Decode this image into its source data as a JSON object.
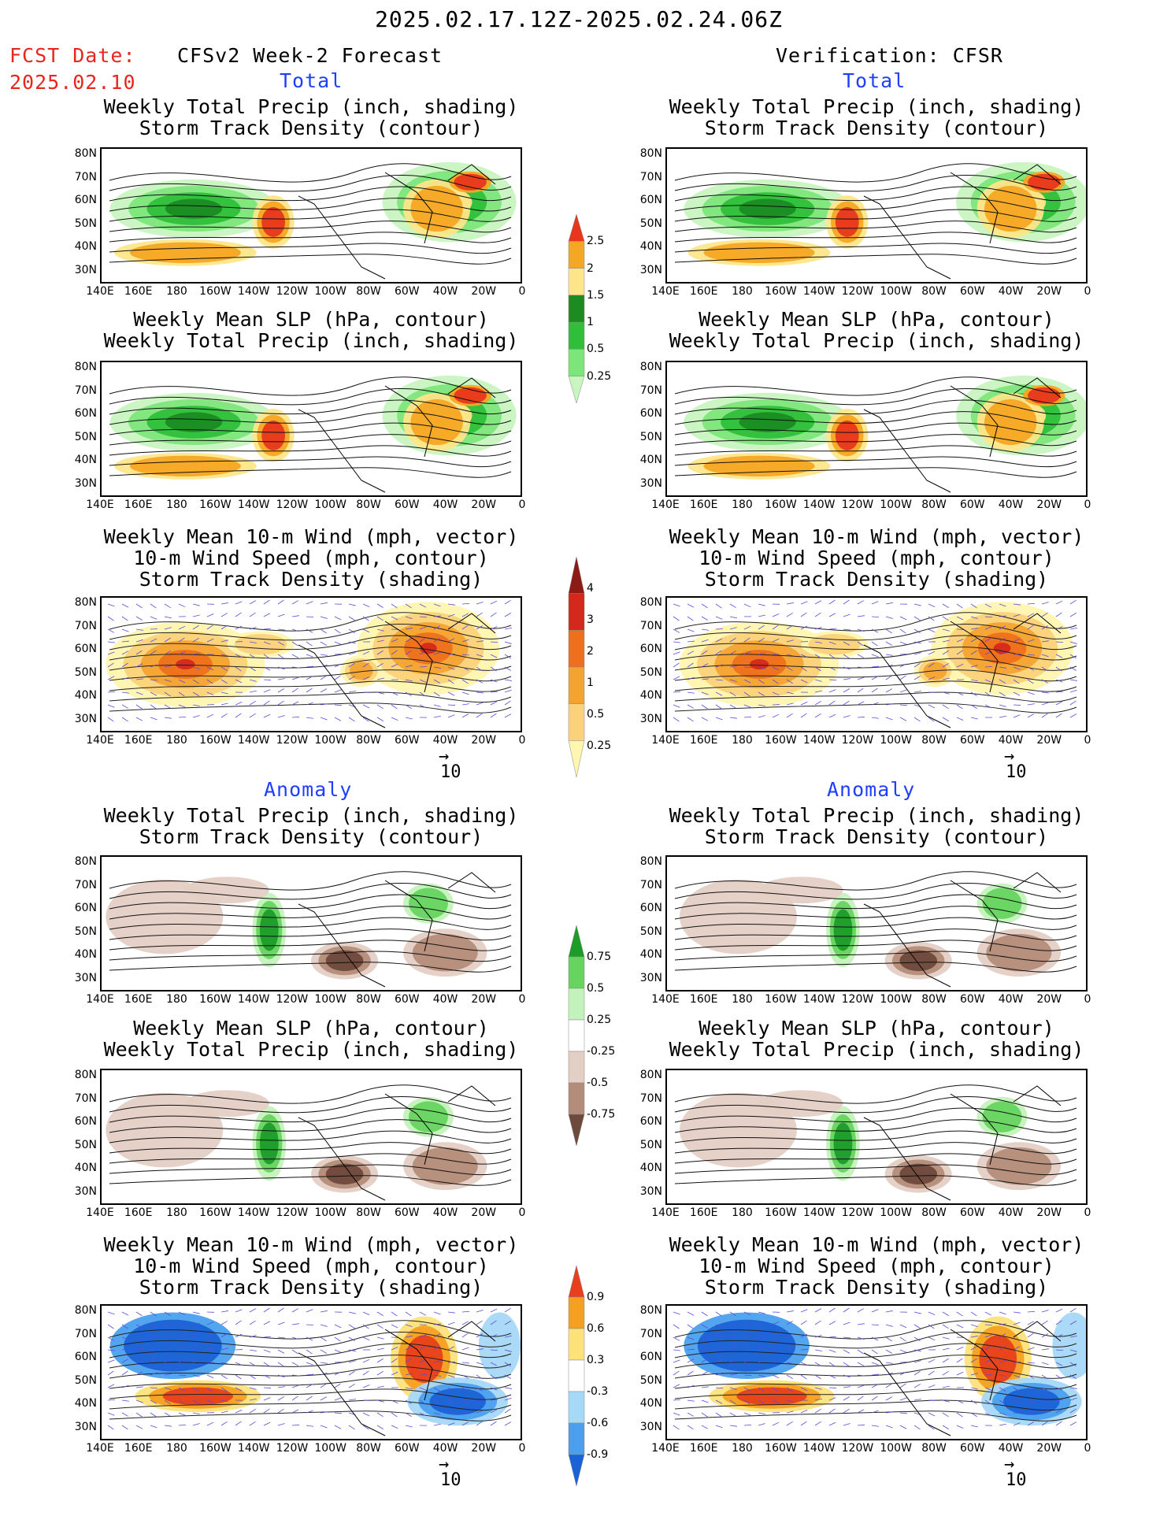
{
  "header": {
    "date_range": "2025.02.17.12Z-2025.02.24.06Z",
    "fcst_label": "FCST Date:",
    "fcst_date": "2025.02.10",
    "left_title": "CFSv2 Week-2 Forecast",
    "right_title": "Verification: CFSR",
    "total": "Total",
    "anomaly": "Anomaly"
  },
  "titles": {
    "precip_storm": [
      "Weekly Total Precip (inch, shading)",
      "Storm Track Density (contour)"
    ],
    "slp_precip": [
      "Weekly Mean SLP (hPa, contour)",
      "Weekly Total Precip (inch, shading)"
    ],
    "wind": [
      "Weekly Mean 10-m Wind (mph, vector)",
      "10-m Wind Speed (mph, contour)",
      "Storm Track Density (shading)"
    ]
  },
  "axes": {
    "lat": [
      "80N",
      "70N",
      "60N",
      "50N",
      "40N",
      "30N"
    ],
    "lon": [
      "140E",
      "160E",
      "180",
      "160W",
      "140W",
      "120W",
      "100W",
      "80W",
      "60W",
      "40W",
      "20W",
      "0"
    ]
  },
  "vector_ref": "10",
  "colorbars": {
    "precip_total": [
      "0.25",
      "0.5",
      "1",
      "1.5",
      "2",
      "2.5"
    ],
    "storm_total": [
      "0.25",
      "0.5",
      "1",
      "2",
      "3",
      "4"
    ],
    "precip_anom": [
      "-0.75",
      "-0.5",
      "-0.25",
      "0.25",
      "0.5",
      "0.75"
    ],
    "storm_anom": [
      "-0.9",
      "-0.6",
      "-0.3",
      "0.3",
      "0.6",
      "0.9"
    ]
  },
  "colors": {
    "precip": [
      "#c8f5c0",
      "#7ce67a",
      "#2fbf3a",
      "#1a8c22",
      "#fde68a",
      "#f5a623",
      "#e8361c"
    ],
    "storm": [
      "#fff6b0",
      "#fbd27a",
      "#f5a330",
      "#ee6f1c",
      "#d3281b",
      "#8c1a16"
    ],
    "anom_dry": [
      "#e4cfc4",
      "#b48c7a",
      "#6e4a3c"
    ],
    "anom_wet": [
      "#c4f2bc",
      "#66d45e",
      "#1e9c2a"
    ],
    "storm_anom": [
      "#1b62d6",
      "#4aa0ee",
      "#a6d8f8",
      "#fde27a",
      "#f5a020",
      "#e8401c"
    ]
  }
}
